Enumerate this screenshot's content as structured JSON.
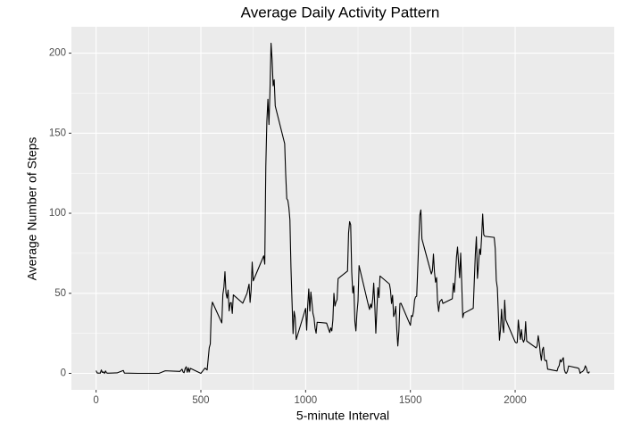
{
  "chart_data": {
    "type": "line",
    "title": "Average Daily Activity Pattern",
    "x_label": "5-minute Interval",
    "y_label": "Average Number of Steps",
    "color": "#000000",
    "grid": true,
    "xlim": [
      -117.75,
      2472.75
    ],
    "ylim": [
      -10.31,
      216.48
    ],
    "xticks": [
      0,
      500,
      1000,
      1500,
      2000
    ],
    "yticks": [
      0,
      50,
      100,
      150,
      200
    ],
    "x": [
      0,
      5,
      10,
      15,
      20,
      25,
      30,
      35,
      40,
      45,
      50,
      55,
      100,
      130,
      135,
      200,
      300,
      330,
      400,
      410,
      415,
      420,
      425,
      430,
      435,
      440,
      445,
      450,
      500,
      520,
      530,
      540,
      545,
      550,
      555,
      600,
      605,
      610,
      615,
      620,
      625,
      630,
      635,
      640,
      645,
      650,
      655,
      700,
      720,
      730,
      735,
      740,
      745,
      750,
      800,
      805,
      810,
      815,
      820,
      825,
      830,
      835,
      840,
      845,
      850,
      855,
      900,
      905,
      910,
      915,
      920,
      925,
      930,
      935,
      940,
      945,
      950,
      955,
      1000,
      1005,
      1010,
      1015,
      1020,
      1025,
      1030,
      1035,
      1040,
      1045,
      1050,
      1055,
      1100,
      1115,
      1120,
      1125,
      1130,
      1135,
      1140,
      1145,
      1150,
      1155,
      1200,
      1205,
      1210,
      1215,
      1220,
      1225,
      1230,
      1235,
      1240,
      1245,
      1250,
      1255,
      1300,
      1305,
      1310,
      1315,
      1320,
      1325,
      1330,
      1335,
      1340,
      1345,
      1350,
      1355,
      1400,
      1405,
      1410,
      1415,
      1420,
      1425,
      1430,
      1435,
      1440,
      1445,
      1450,
      1455,
      1500,
      1505,
      1510,
      1515,
      1520,
      1525,
      1530,
      1535,
      1540,
      1545,
      1550,
      1555,
      1600,
      1605,
      1610,
      1615,
      1620,
      1625,
      1630,
      1635,
      1640,
      1645,
      1650,
      1655,
      1700,
      1705,
      1710,
      1715,
      1720,
      1725,
      1730,
      1735,
      1740,
      1745,
      1750,
      1755,
      1800,
      1805,
      1810,
      1815,
      1820,
      1825,
      1830,
      1835,
      1840,
      1845,
      1850,
      1855,
      1900,
      1905,
      1910,
      1915,
      1920,
      1925,
      1930,
      1935,
      1940,
      1945,
      1950,
      1955,
      2000,
      2005,
      2010,
      2015,
      2020,
      2025,
      2030,
      2035,
      2040,
      2045,
      2050,
      2055,
      2100,
      2105,
      2110,
      2115,
      2120,
      2125,
      2130,
      2135,
      2140,
      2145,
      2150,
      2155,
      2200,
      2205,
      2210,
      2215,
      2220,
      2225,
      2230,
      2235,
      2240,
      2245,
      2250,
      2255,
      2300,
      2305,
      2310,
      2315,
      2320,
      2325,
      2330,
      2335,
      2340,
      2345,
      2350,
      2355
    ],
    "values": [
      1.7,
      0.3,
      0.1,
      0.2,
      0.1,
      2.1,
      0.5,
      0.9,
      0,
      1.5,
      0.3,
      0.1,
      0.3,
      1.8,
      0.2,
      0,
      0,
      1.6,
      1.2,
      2.6,
      0.9,
      0.4,
      3,
      4.1,
      0.7,
      3.5,
      0.8,
      3.1,
      0,
      3.3,
      2.1,
      16,
      18.3,
      39.5,
      44.5,
      31.5,
      49.3,
      53.8,
      63.5,
      50,
      47,
      52,
      39,
      44,
      44.2,
      37.4,
      49,
      43.8,
      49.9,
      55.7,
      44.3,
      52.3,
      69.5,
      57.8,
      73.4,
      68.2,
      129.4,
      157.5,
      171.2,
      155.4,
      177.3,
      206.2,
      195.9,
      179.6,
      183.4,
      167,
      143.5,
      124,
      109.1,
      108.1,
      103.7,
      95.9,
      66.2,
      45.2,
      24.8,
      38.8,
      34.98,
      21.1,
      40.6,
      26.98,
      42.4,
      52.7,
      38.9,
      50.8,
      44.3,
      37.4,
      34.7,
      28.3,
      25.1,
      31.9,
      31.4,
      25.5,
      28.4,
      26.5,
      33.3,
      49.98,
      42,
      44.6,
      46,
      59.2,
      63.9,
      87.7,
      94.8,
      92.8,
      63.4,
      50.2,
      54.5,
      32.4,
      26.5,
      37.7,
      45.1,
      67.3,
      42.3,
      39.9,
      43.3,
      41,
      46.2,
      56.4,
      42.8,
      25.1,
      39.97,
      53.5,
      47.3,
      60.8,
      55.8,
      51.96,
      43.6,
      48.7,
      35.5,
      37.5,
      41.8,
      27.5,
      17.1,
      26.1,
      43.6,
      43.8,
      30,
      36.1,
      35.5,
      38.8,
      45.96,
      47.8,
      48.1,
      65.3,
      82.9,
      98.7,
      102.1,
      83.96,
      62.1,
      64.1,
      74.5,
      63.2,
      56.9,
      59.8,
      43.9,
      38.6,
      44.7,
      45.5,
      46.2,
      43.7,
      46.6,
      56.3,
      50.7,
      61.2,
      72.7,
      78.9,
      68.9,
      59.7,
      75.1,
      56.5,
      34.8,
      37.5,
      40.7,
      58,
      74.7,
      85.3,
      59.3,
      67.8,
      77.7,
      74.2,
      85.3,
      99.5,
      86.6,
      85.6,
      84.9,
      77.8,
      58,
      53.4,
      36.3,
      20.7,
      27.4,
      40,
      30.2,
      25.5,
      45.7,
      33.5,
      19.6,
      19,
      19.3,
      33.3,
      26.8,
      21.2,
      27.3,
      21.3,
      19.5,
      21.3,
      32.3,
      20.2,
      15.9,
      17.2,
      23.5,
      19.2,
      12.5,
      8.1,
      14.7,
      16.3,
      8.7,
      7.8,
      8.1,
      2.6,
      1.5,
      3.7,
      4.8,
      8.5,
      7.1,
      8.7,
      9.8,
      2.2,
      0.3,
      0.1,
      1.6,
      4.6,
      3.3,
      2.8,
      0,
      0.8,
      0.96,
      1.6,
      2.6,
      4.7,
      3.3,
      0.6,
      0.2,
      1.1
    ]
  }
}
